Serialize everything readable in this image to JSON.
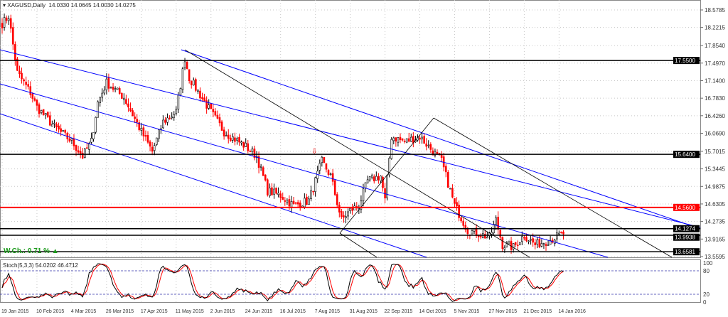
{
  "header": {
    "symbol": "XAGUSD,Daily",
    "ohlc": "14.0330 14.0645 14.0030 14.0275"
  },
  "weekly_change": "W.Ch.: 0.71 %",
  "stoch_label": "Stoch(5,3,3) 54.0202 46.4712",
  "colors": {
    "bull": "#000000",
    "bear": "#ff0000",
    "channel": "#0000ff",
    "level": "#000000",
    "resistance": "#ff0000",
    "stoch_main": "#000000",
    "stoch_signal": "#ff0000",
    "grid": "#c8c8c8"
  },
  "chart_data": {
    "type": "candlestick",
    "price_axis_ticks": [
      "18.5785",
      "18.2215",
      "17.8540",
      "17.4970",
      "17.1400",
      "16.7830",
      "16.4260",
      "16.0690",
      "15.7015",
      "15.3445",
      "14.9875",
      "14.6305",
      "14.2735",
      "13.9165",
      "13.5595"
    ],
    "ylim": [
      13.5595,
      18.5785
    ],
    "price_labels": [
      {
        "value": "17.5500",
        "style": "level"
      },
      {
        "value": "15.6400",
        "style": "level"
      },
      {
        "value": "14.5600",
        "style": "resistance"
      },
      {
        "value": "14.1274",
        "style": "level"
      },
      {
        "value": "13.9938",
        "style": "level"
      },
      {
        "value": "13.6581",
        "style": "level"
      }
    ],
    "date_ticks": [
      "19 Jan 2015",
      "10 Feb 2015",
      "4 Mar 2015",
      "26 Mar 2015",
      "17 Apr 2015",
      "11 May 2015",
      "2 Jun 2015",
      "24 Jun 2015",
      "16 Jul 2015",
      "7 Aug 2015",
      "31 Aug 2015",
      "22 Sep 2015",
      "14 Oct 2015",
      "5 Nov 2015",
      "27 Nov 2015",
      "21 Dec 2015",
      "14 Jan 2016"
    ],
    "stoch_ticks": [
      "100",
      "80",
      "20",
      "0"
    ],
    "approx_close": [
      [
        "2015-01-19",
        18.3
      ],
      [
        "2015-01-22",
        18.45
      ],
      [
        "2015-01-28",
        17.3
      ],
      [
        "2015-02-05",
        16.9
      ],
      [
        "2015-02-10",
        16.6
      ],
      [
        "2015-02-20",
        16.2
      ],
      [
        "2015-03-04",
        15.9
      ],
      [
        "2015-03-11",
        15.6
      ],
      [
        "2015-03-17",
        15.9
      ],
      [
        "2015-03-20",
        16.7
      ],
      [
        "2015-03-26",
        17.1
      ],
      [
        "2015-04-07",
        16.8
      ],
      [
        "2015-04-17",
        16.1
      ],
      [
        "2015-04-24",
        15.7
      ],
      [
        "2015-05-01",
        16.3
      ],
      [
        "2015-05-11",
        16.5
      ],
      [
        "2015-05-15",
        17.6
      ],
      [
        "2015-05-19",
        17.2
      ],
      [
        "2015-06-02",
        16.5
      ],
      [
        "2015-06-10",
        16.1
      ],
      [
        "2015-06-24",
        15.8
      ],
      [
        "2015-07-01",
        15.6
      ],
      [
        "2015-07-08",
        14.9
      ],
      [
        "2015-07-16",
        14.8
      ],
      [
        "2015-07-24",
        14.6
      ],
      [
        "2015-08-04",
        14.7
      ],
      [
        "2015-08-12",
        15.5
      ],
      [
        "2015-08-18",
        15.2
      ],
      [
        "2015-08-25",
        14.3
      ],
      [
        "2015-08-31",
        14.5
      ],
      [
        "2015-09-04",
        14.6
      ],
      [
        "2015-09-10",
        15.1
      ],
      [
        "2015-09-18",
        15.2
      ],
      [
        "2015-09-22",
        14.7
      ],
      [
        "2015-09-25",
        16.0
      ],
      [
        "2015-10-05",
        15.9
      ],
      [
        "2015-10-14",
        16.0
      ],
      [
        "2015-10-20",
        15.8
      ],
      [
        "2015-10-28",
        15.5
      ],
      [
        "2015-11-05",
        14.6
      ],
      [
        "2015-11-13",
        14.1
      ],
      [
        "2015-11-27",
        13.95
      ],
      [
        "2015-12-02",
        14.3
      ],
      [
        "2015-12-07",
        13.8
      ],
      [
        "2015-12-14",
        13.75
      ],
      [
        "2015-12-21",
        14.0
      ],
      [
        "2015-12-28",
        13.8
      ],
      [
        "2016-01-06",
        13.9
      ],
      [
        "2016-01-14",
        14.03
      ]
    ]
  }
}
